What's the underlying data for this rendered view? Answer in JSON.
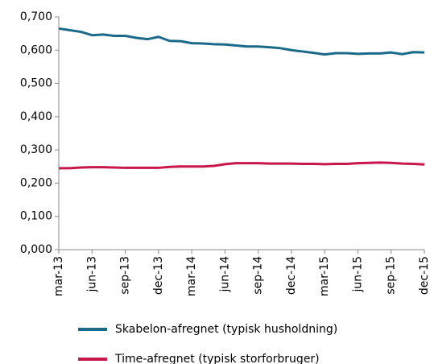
{
  "chart_data": {
    "type": "line",
    "categories": [
      "mar-13",
      null,
      null,
      "jun-13",
      null,
      null,
      "sep-13",
      null,
      null,
      "dec-13",
      null,
      null,
      "mar-14",
      null,
      null,
      "jun-14",
      null,
      null,
      "sep-14",
      null,
      null,
      "dec-14",
      null,
      null,
      "mar-15",
      null,
      null,
      "jun-15",
      null,
      null,
      "sep-15",
      null,
      null,
      "dec-15"
    ],
    "series": [
      {
        "name": "Skabelon-afregnet (typisk husholdning)",
        "color": "#1b6a8a",
        "values": [
          0.665,
          0.66,
          0.655,
          0.645,
          0.647,
          0.643,
          0.643,
          0.637,
          0.633,
          0.64,
          0.628,
          0.627,
          0.621,
          0.62,
          0.618,
          0.617,
          0.614,
          0.611,
          0.611,
          0.609,
          0.606,
          0.6,
          0.596,
          0.592,
          0.587,
          0.591,
          0.591,
          0.589,
          0.59,
          0.59,
          0.593,
          0.588,
          0.594,
          0.593
        ]
      },
      {
        "name": "Time-afregnet (typisk storforbruger)",
        "color": "#c8174b",
        "values": [
          0.245,
          0.245,
          0.247,
          0.248,
          0.248,
          0.247,
          0.246,
          0.246,
          0.246,
          0.246,
          0.249,
          0.25,
          0.25,
          0.25,
          0.252,
          0.257,
          0.26,
          0.26,
          0.26,
          0.259,
          0.259,
          0.259,
          0.258,
          0.258,
          0.257,
          0.258,
          0.258,
          0.26,
          0.261,
          0.262,
          0.261,
          0.259,
          0.258,
          0.256
        ]
      }
    ],
    "ylim": [
      0,
      0.7
    ],
    "yticks": [
      {
        "value": 0,
        "label": "0,000"
      },
      {
        "value": 0.1,
        "label": "0,100"
      },
      {
        "value": 0.2,
        "label": "0,200"
      },
      {
        "value": 0.3,
        "label": "0,300"
      },
      {
        "value": 0.4,
        "label": "0,400"
      },
      {
        "value": 0.5,
        "label": "0,500"
      },
      {
        "value": 0.6,
        "label": "0,600"
      },
      {
        "value": 0.7,
        "label": "0,700"
      }
    ],
    "grid": false
  }
}
